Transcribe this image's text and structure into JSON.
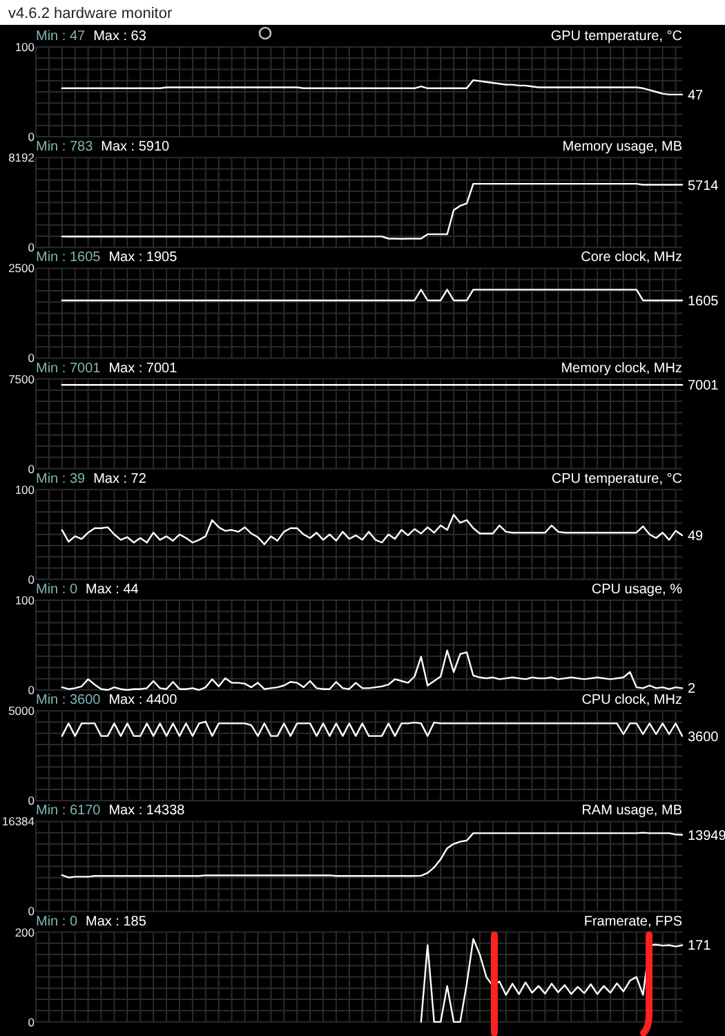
{
  "chart_data": [
    {
      "type": "line",
      "title": "GPU temperature, °C",
      "categories": [
        null,
        null,
        null,
        null,
        null,
        null,
        null,
        null,
        null,
        null,
        null,
        null,
        null,
        null,
        null,
        null,
        null,
        null,
        null,
        null,
        null,
        null,
        null,
        null,
        null,
        null,
        null,
        null,
        null,
        null,
        null,
        null,
        null,
        null,
        null,
        null,
        null,
        null,
        null,
        null,
        null,
        null,
        null,
        null,
        null,
        null,
        null,
        null,
        null,
        null,
        null,
        null,
        null,
        null,
        null,
        null,
        null,
        null,
        null,
        null,
        null,
        null,
        null,
        null,
        null,
        null,
        null,
        null,
        null,
        null,
        null,
        null,
        null,
        null,
        null,
        null,
        null,
        null,
        null,
        null,
        null,
        null,
        null,
        null,
        null,
        null,
        null,
        null,
        null,
        null,
        null,
        null,
        null,
        null,
        null,
        null,
        null,
        null,
        null,
        null
      ],
      "series": [
        {
          "color": "#ffffff",
          "values": [
            null,
            null,
            null,
            null,
            54,
            54,
            54,
            54,
            54,
            54,
            54,
            54,
            54,
            54,
            54,
            54,
            54,
            54,
            54,
            54,
            55,
            55,
            55,
            55,
            55,
            55,
            55,
            55,
            55,
            55,
            55,
            55,
            55,
            55,
            55,
            55,
            55,
            55,
            55,
            55,
            55,
            54,
            54,
            54,
            54,
            54,
            54,
            54,
            54,
            54,
            54,
            54,
            54,
            54,
            54,
            54,
            54,
            54,
            54,
            56,
            54,
            54,
            54,
            54,
            54,
            54,
            54,
            63,
            62,
            61,
            60,
            59,
            58,
            58,
            57,
            57,
            56,
            55,
            55,
            55,
            55,
            55,
            55,
            55,
            55,
            55,
            55,
            55,
            55,
            55,
            55,
            55,
            55,
            54,
            52,
            50,
            48,
            47,
            47,
            47
          ]
        }
      ],
      "ylim": [
        0,
        100
      ],
      "yticks": [
        0,
        100
      ],
      "grid": true,
      "annotations": [
        "Min : 47",
        "Max : 63",
        "47",
        "v4.6.2 hardware monitor"
      ]
    },
    {
      "type": "line",
      "title": "Memory usage, MB",
      "categories": [
        null,
        null,
        null,
        null,
        null,
        null,
        null,
        null,
        null,
        null,
        null,
        null,
        null,
        null,
        null,
        null,
        null,
        null,
        null,
        null,
        null,
        null,
        null,
        null,
        null,
        null,
        null,
        null,
        null,
        null,
        null,
        null,
        null,
        null,
        null,
        null,
        null,
        null,
        null,
        null,
        null,
        null,
        null,
        null,
        null,
        null,
        null,
        null,
        null,
        null,
        null,
        null,
        null,
        null,
        null,
        null,
        null,
        null,
        null,
        null,
        null,
        null,
        null,
        null,
        null,
        null,
        null,
        null,
        null,
        null,
        null,
        null,
        null,
        null,
        null,
        null,
        null,
        null,
        null,
        null,
        null,
        null,
        null,
        null,
        null,
        null,
        null,
        null,
        null,
        null,
        null,
        null,
        null,
        null,
        null,
        null,
        null,
        null,
        null,
        null
      ],
      "series": [
        {
          "color": "#ffffff",
          "values": [
            null,
            null,
            null,
            null,
            1000,
            990,
            990,
            990,
            990,
            990,
            990,
            990,
            990,
            990,
            990,
            990,
            990,
            990,
            990,
            990,
            990,
            990,
            990,
            990,
            990,
            990,
            990,
            990,
            990,
            990,
            990,
            990,
            990,
            990,
            990,
            990,
            990,
            990,
            990,
            990,
            990,
            990,
            990,
            990,
            990,
            990,
            990,
            990,
            1000,
            1000,
            1000,
            1000,
            1000,
            1000,
            800,
            800,
            783,
            800,
            800,
            800,
            1200,
            1200,
            1200,
            1200,
            3400,
            3800,
            4000,
            5800,
            5800,
            5800,
            5800,
            5800,
            5800,
            5800,
            5800,
            5800,
            5800,
            5800,
            5800,
            5800,
            5800,
            5800,
            5800,
            5800,
            5800,
            5800,
            5800,
            5800,
            5800,
            5800,
            5800,
            5800,
            5800,
            5714,
            5714,
            5714,
            5714,
            5714,
            5714,
            5714
          ]
        }
      ],
      "ylim": [
        0,
        8192
      ],
      "yticks": [
        0,
        8192
      ],
      "grid": true,
      "annotations": [
        "Min : 783",
        "Max : 5910",
        "5714"
      ]
    },
    {
      "type": "line",
      "title": "Core clock, MHz",
      "categories": [
        null,
        null,
        null,
        null,
        null,
        null,
        null,
        null,
        null,
        null,
        null,
        null,
        null,
        null,
        null,
        null,
        null,
        null,
        null,
        null,
        null,
        null,
        null,
        null,
        null,
        null,
        null,
        null,
        null,
        null,
        null,
        null,
        null,
        null,
        null,
        null,
        null,
        null,
        null,
        null,
        null,
        null,
        null,
        null,
        null,
        null,
        null,
        null,
        null,
        null,
        null,
        null,
        null,
        null,
        null,
        null,
        null,
        null,
        null,
        null,
        null,
        null,
        null,
        null,
        null,
        null,
        null,
        null,
        null,
        null,
        null,
        null,
        null,
        null,
        null,
        null,
        null,
        null,
        null,
        null,
        null,
        null,
        null,
        null,
        null,
        null,
        null,
        null,
        null,
        null,
        null,
        null,
        null,
        null,
        null,
        null,
        null,
        null,
        null,
        null
      ],
      "series": [
        {
          "color": "#ffffff",
          "values": [
            null,
            null,
            null,
            null,
            1605,
            1605,
            1605,
            1605,
            1605,
            1605,
            1605,
            1605,
            1605,
            1605,
            1605,
            1605,
            1605,
            1605,
            1605,
            1605,
            1605,
            1605,
            1605,
            1605,
            1605,
            1605,
            1605,
            1605,
            1605,
            1605,
            1605,
            1605,
            1605,
            1605,
            1605,
            1605,
            1605,
            1605,
            1605,
            1605,
            1605,
            1605,
            1605,
            1605,
            1605,
            1605,
            1605,
            1605,
            1605,
            1605,
            1605,
            1605,
            1605,
            1605,
            1605,
            1605,
            1605,
            1605,
            1605,
            1905,
            1605,
            1605,
            1605,
            1905,
            1605,
            1605,
            1605,
            1905,
            1905,
            1905,
            1905,
            1905,
            1905,
            1905,
            1905,
            1905,
            1905,
            1905,
            1905,
            1905,
            1905,
            1905,
            1905,
            1905,
            1905,
            1905,
            1905,
            1905,
            1905,
            1905,
            1905,
            1905,
            1905,
            1605,
            1605,
            1605,
            1605,
            1605,
            1605,
            1605
          ]
        }
      ],
      "ylim": [
        0,
        2500
      ],
      "yticks": [
        0,
        2500
      ],
      "grid": true,
      "annotations": [
        "Min : 1605",
        "Max : 1905",
        "1605"
      ]
    },
    {
      "type": "line",
      "title": "Memory clock, MHz",
      "categories": [
        null,
        null,
        null,
        null,
        null,
        null,
        null,
        null,
        null,
        null,
        null,
        null,
        null,
        null,
        null,
        null,
        null,
        null,
        null,
        null,
        null,
        null,
        null,
        null,
        null,
        null,
        null,
        null,
        null,
        null,
        null,
        null,
        null,
        null,
        null,
        null,
        null,
        null,
        null,
        null,
        null,
        null,
        null,
        null,
        null,
        null,
        null,
        null,
        null,
        null,
        null,
        null,
        null,
        null,
        null,
        null,
        null,
        null,
        null,
        null,
        null,
        null,
        null,
        null,
        null,
        null,
        null,
        null,
        null,
        null,
        null,
        null,
        null,
        null,
        null,
        null,
        null,
        null,
        null,
        null,
        null,
        null,
        null,
        null,
        null,
        null,
        null,
        null,
        null,
        null,
        null,
        null,
        null,
        null,
        null,
        null,
        null,
        null,
        null,
        null
      ],
      "series": [
        {
          "color": "#ffffff",
          "values": [
            null,
            null,
            null,
            null,
            7001,
            7001,
            7001,
            7001,
            7001,
            7001,
            7001,
            7001,
            7001,
            7001,
            7001,
            7001,
            7001,
            7001,
            7001,
            7001,
            7001,
            7001,
            7001,
            7001,
            7001,
            7001,
            7001,
            7001,
            7001,
            7001,
            7001,
            7001,
            7001,
            7001,
            7001,
            7001,
            7001,
            7001,
            7001,
            7001,
            7001,
            7001,
            7001,
            7001,
            7001,
            7001,
            7001,
            7001,
            7001,
            7001,
            7001,
            7001,
            7001,
            7001,
            7001,
            7001,
            7001,
            7001,
            7001,
            7001,
            7001,
            7001,
            7001,
            7001,
            7001,
            7001,
            7001,
            7001,
            7001,
            7001,
            7001,
            7001,
            7001,
            7001,
            7001,
            7001,
            7001,
            7001,
            7001,
            7001,
            7001,
            7001,
            7001,
            7001,
            7001,
            7001,
            7001,
            7001,
            7001,
            7001,
            7001,
            7001,
            7001,
            7001,
            7001,
            7001,
            7001,
            7001,
            7001,
            7001
          ]
        }
      ],
      "ylim": [
        0,
        7500
      ],
      "yticks": [
        0,
        7500
      ],
      "grid": true,
      "annotations": [
        "Min : 7001",
        "Max : 7001",
        "7001"
      ]
    },
    {
      "type": "line",
      "title": "CPU temperature, °C",
      "categories": [
        null,
        null,
        null,
        null,
        null,
        null,
        null,
        null,
        null,
        null,
        null,
        null,
        null,
        null,
        null,
        null,
        null,
        null,
        null,
        null,
        null,
        null,
        null,
        null,
        null,
        null,
        null,
        null,
        null,
        null,
        null,
        null,
        null,
        null,
        null,
        null,
        null,
        null,
        null,
        null,
        null,
        null,
        null,
        null,
        null,
        null,
        null,
        null,
        null,
        null,
        null,
        null,
        null,
        null,
        null,
        null,
        null,
        null,
        null,
        null,
        null,
        null,
        null,
        null,
        null,
        null,
        null,
        null,
        null,
        null,
        null,
        null,
        null,
        null,
        null,
        null,
        null,
        null,
        null,
        null,
        null,
        null,
        null,
        null,
        null,
        null,
        null,
        null,
        null,
        null,
        null,
        null,
        null,
        null,
        null,
        null,
        null,
        null,
        null,
        null
      ],
      "series": [
        {
          "color": "#ffffff",
          "values": [
            null,
            null,
            null,
            null,
            55,
            42,
            48,
            45,
            52,
            57,
            57,
            58,
            50,
            44,
            47,
            41,
            46,
            41,
            52,
            44,
            48,
            43,
            50,
            46,
            41,
            44,
            48,
            66,
            58,
            54,
            55,
            53,
            58,
            51,
            47,
            39,
            48,
            43,
            53,
            57,
            57,
            50,
            46,
            52,
            44,
            50,
            43,
            53,
            45,
            49,
            44,
            53,
            44,
            41,
            50,
            45,
            55,
            49,
            56,
            51,
            58,
            52,
            60,
            55,
            72,
            63,
            66,
            57,
            51,
            51,
            51,
            60,
            53,
            52,
            52,
            52,
            52,
            52,
            52,
            60,
            53,
            52,
            52,
            52,
            52,
            52,
            52,
            52,
            52,
            52,
            52,
            52,
            52,
            59,
            50,
            46,
            52,
            44,
            54,
            49
          ]
        }
      ],
      "ylim": [
        0,
        100
      ],
      "yticks": [
        0,
        100
      ],
      "grid": true,
      "annotations": [
        "Min : 39",
        "Max : 72",
        "49"
      ]
    },
    {
      "type": "line",
      "title": "CPU usage, %",
      "categories": [
        null,
        null,
        null,
        null,
        null,
        null,
        null,
        null,
        null,
        null,
        null,
        null,
        null,
        null,
        null,
        null,
        null,
        null,
        null,
        null,
        null,
        null,
        null,
        null,
        null,
        null,
        null,
        null,
        null,
        null,
        null,
        null,
        null,
        null,
        null,
        null,
        null,
        null,
        null,
        null,
        null,
        null,
        null,
        null,
        null,
        null,
        null,
        null,
        null,
        null,
        null,
        null,
        null,
        null,
        null,
        null,
        null,
        null,
        null,
        null,
        null,
        null,
        null,
        null,
        null,
        null,
        null,
        null,
        null,
        null,
        null,
        null,
        null,
        null,
        null,
        null,
        null,
        null,
        null,
        null,
        null,
        null,
        null,
        null,
        null,
        null,
        null,
        null,
        null,
        null,
        null,
        null,
        null,
        null,
        null,
        null,
        null,
        null,
        null,
        null
      ],
      "series": [
        {
          "color": "#ffffff",
          "values": [
            null,
            null,
            null,
            null,
            3,
            1,
            2,
            4,
            12,
            6,
            1,
            0,
            3,
            1,
            0,
            1,
            1,
            2,
            10,
            2,
            1,
            9,
            1,
            1,
            2,
            0,
            3,
            12,
            4,
            13,
            8,
            8,
            7,
            3,
            8,
            1,
            2,
            3,
            5,
            9,
            8,
            3,
            10,
            2,
            1,
            1,
            9,
            2,
            1,
            8,
            2,
            2,
            3,
            4,
            6,
            12,
            10,
            8,
            15,
            37,
            5,
            10,
            15,
            44,
            20,
            40,
            42,
            16,
            14,
            13,
            14,
            12,
            13,
            14,
            13,
            12,
            14,
            13,
            13,
            14,
            12,
            13,
            14,
            13,
            12,
            13,
            14,
            13,
            12,
            13,
            14,
            20,
            3,
            2,
            5,
            2,
            3,
            1,
            3,
            2
          ]
        }
      ],
      "ylim": [
        0,
        100
      ],
      "yticks": [
        0,
        100
      ],
      "grid": true,
      "annotations": [
        "Min : 0",
        "Max : 44",
        "2"
      ]
    },
    {
      "type": "line",
      "title": "CPU clock, MHz",
      "categories": [
        null,
        null,
        null,
        null,
        null,
        null,
        null,
        null,
        null,
        null,
        null,
        null,
        null,
        null,
        null,
        null,
        null,
        null,
        null,
        null,
        null,
        null,
        null,
        null,
        null,
        null,
        null,
        null,
        null,
        null,
        null,
        null,
        null,
        null,
        null,
        null,
        null,
        null,
        null,
        null,
        null,
        null,
        null,
        null,
        null,
        null,
        null,
        null,
        null,
        null,
        null,
        null,
        null,
        null,
        null,
        null,
        null,
        null,
        null,
        null,
        null,
        null,
        null,
        null,
        null,
        null,
        null,
        null,
        null,
        null,
        null,
        null,
        null,
        null,
        null,
        null,
        null,
        null,
        null,
        null,
        null,
        null,
        null,
        null,
        null,
        null,
        null,
        null,
        null,
        null,
        null,
        null,
        null,
        null,
        null,
        null,
        null,
        null,
        null,
        null
      ],
      "series": [
        {
          "color": "#ffffff",
          "values": [
            null,
            null,
            null,
            null,
            3600,
            4300,
            3600,
            4300,
            4300,
            4300,
            3600,
            3600,
            4300,
            3600,
            4300,
            3600,
            3600,
            4300,
            3600,
            4300,
            3600,
            4300,
            3600,
            4300,
            3600,
            4300,
            4400,
            3600,
            4300,
            4300,
            4300,
            4300,
            4300,
            4200,
            3600,
            4300,
            3600,
            3600,
            4300,
            3600,
            4300,
            4300,
            4300,
            3600,
            4300,
            3600,
            4300,
            3600,
            4300,
            3600,
            4300,
            3600,
            3600,
            3600,
            4300,
            3600,
            4300,
            4300,
            4350,
            4300,
            3600,
            4350,
            4300,
            4300,
            4300,
            4300,
            4300,
            4300,
            4300,
            4300,
            4300,
            4300,
            4300,
            4300,
            4300,
            4300,
            4300,
            4300,
            4300,
            4300,
            4300,
            4300,
            4300,
            4300,
            4300,
            4300,
            4300,
            4300,
            4300,
            4300,
            3700,
            4300,
            4300,
            3700,
            4300,
            3700,
            4300,
            3700,
            4300,
            3600
          ]
        }
      ],
      "ylim": [
        0,
        5000
      ],
      "yticks": [
        0,
        5000
      ],
      "grid": true,
      "annotations": [
        "Min : 3600",
        "Max : 4400",
        "3600"
      ]
    },
    {
      "type": "line",
      "title": "RAM usage, MB",
      "categories": [
        null,
        null,
        null,
        null,
        null,
        null,
        null,
        null,
        null,
        null,
        null,
        null,
        null,
        null,
        null,
        null,
        null,
        null,
        null,
        null,
        null,
        null,
        null,
        null,
        null,
        null,
        null,
        null,
        null,
        null,
        null,
        null,
        null,
        null,
        null,
        null,
        null,
        null,
        null,
        null,
        null,
        null,
        null,
        null,
        null,
        null,
        null,
        null,
        null,
        null,
        null,
        null,
        null,
        null,
        null,
        null,
        null,
        null,
        null,
        null,
        null,
        null,
        null,
        null,
        null,
        null,
        null,
        null,
        null,
        null,
        null,
        null,
        null,
        null,
        null,
        null,
        null,
        null,
        null,
        null,
        null,
        null,
        null,
        null,
        null,
        null,
        null,
        null,
        null,
        null,
        null,
        null,
        null,
        null,
        null,
        null,
        null,
        null,
        null,
        null
      ],
      "series": [
        {
          "color": "#ffffff",
          "values": [
            null,
            null,
            null,
            null,
            6600,
            6170,
            6300,
            6300,
            6300,
            6450,
            6450,
            6450,
            6450,
            6450,
            6450,
            6450,
            6450,
            6450,
            6450,
            6450,
            6450,
            6450,
            6450,
            6450,
            6450,
            6450,
            6550,
            6550,
            6550,
            6550,
            6550,
            6550,
            6550,
            6550,
            6550,
            6550,
            6550,
            6550,
            6550,
            6550,
            6550,
            6550,
            6550,
            6550,
            6550,
            6550,
            6450,
            6450,
            6450,
            6450,
            6450,
            6450,
            6450,
            6450,
            6450,
            6450,
            6450,
            6450,
            6450,
            6500,
            7000,
            8000,
            9500,
            11500,
            12300,
            12700,
            12900,
            14250,
            14250,
            14250,
            14250,
            14250,
            14250,
            14250,
            14250,
            14250,
            14250,
            14250,
            14250,
            14250,
            14250,
            14250,
            14250,
            14250,
            14250,
            14250,
            14250,
            14250,
            14250,
            14250,
            14250,
            14250,
            14250,
            14338,
            14250,
            14250,
            14250,
            14250,
            14000,
            13949
          ]
        }
      ],
      "ylim": [
        0,
        16384
      ],
      "yticks": [
        0,
        16384
      ],
      "grid": true,
      "annotations": [
        "Min : 6170",
        "Max : 14338",
        "13949"
      ]
    },
    {
      "type": "line",
      "title": "Framerate, FPS",
      "categories": [
        null,
        null,
        null,
        null,
        null,
        null,
        null,
        null,
        null,
        null,
        null,
        null,
        null,
        null,
        null,
        null,
        null,
        null,
        null,
        null,
        null,
        null,
        null,
        null,
        null,
        null,
        null,
        null,
        null,
        null,
        null,
        null,
        null,
        null,
        null,
        null,
        null,
        null,
        null,
        null,
        null,
        null,
        null,
        null,
        null,
        null,
        null,
        null,
        null,
        null,
        null,
        null,
        null,
        null,
        null,
        null,
        null,
        null,
        null,
        null,
        null,
        null,
        null,
        null,
        null,
        null,
        null,
        null,
        null,
        null,
        null,
        null,
        null,
        null,
        null,
        null,
        null,
        null,
        null,
        null,
        null,
        null,
        null,
        null,
        null,
        null,
        null,
        null,
        null,
        null,
        null,
        null,
        null,
        null,
        null,
        null,
        null,
        null,
        null,
        null
      ],
      "series": [
        {
          "color": "#ffffff",
          "values": [
            null,
            null,
            null,
            null,
            null,
            null,
            null,
            null,
            null,
            null,
            null,
            null,
            null,
            null,
            null,
            null,
            null,
            null,
            null,
            null,
            null,
            null,
            null,
            null,
            null,
            null,
            null,
            null,
            null,
            null,
            null,
            null,
            null,
            null,
            null,
            null,
            null,
            null,
            null,
            null,
            null,
            null,
            null,
            null,
            null,
            null,
            null,
            null,
            null,
            null,
            null,
            null,
            null,
            null,
            null,
            null,
            null,
            null,
            null,
            0,
            171,
            0,
            0,
            80,
            0,
            0,
            85,
            185,
            150,
            100,
            80,
            90,
            60,
            85,
            62,
            88,
            65,
            80,
            63,
            85,
            66,
            82,
            62,
            78,
            64,
            84,
            62,
            80,
            65,
            86,
            68,
            92,
            100,
            60,
            171,
            172,
            170,
            171,
            168,
            171
          ]
        }
      ],
      "ylim": [
        0,
        200
      ],
      "yticks": [
        0,
        200
      ],
      "grid": true,
      "annotations": [
        "Min : 0",
        "Max : 185",
        "171"
      ]
    }
  ]
}
